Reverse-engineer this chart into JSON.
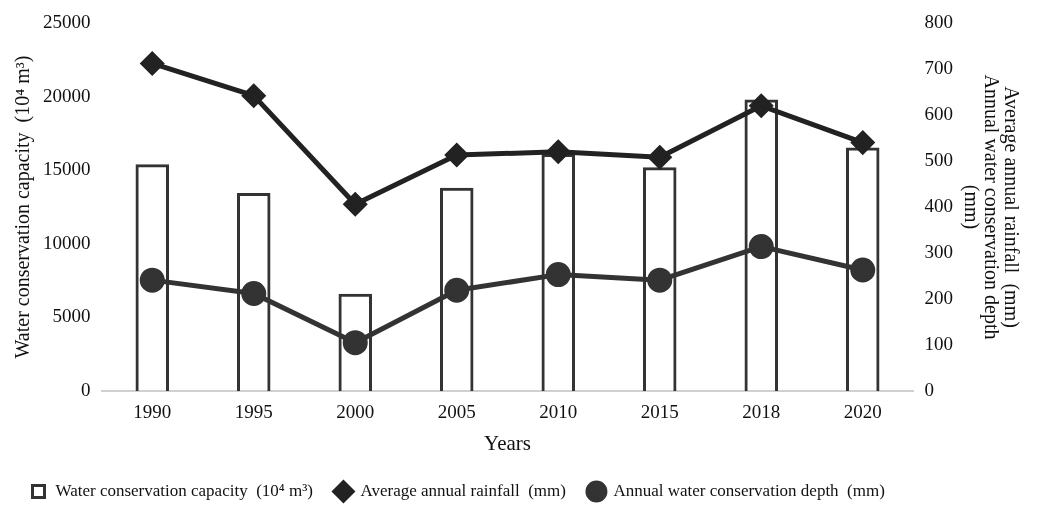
{
  "chart_data": {
    "type": "line",
    "xlabel": "Years",
    "ylabel": "Water conservation capacity  (10⁴ m³)",
    "y2label": "Average annual rainfall  (mm)\nAnnual water conservation depth\n(mm)",
    "categories": [
      "1990",
      "1995",
      "2000",
      "2005",
      "2010",
      "2015",
      "2018",
      "2020"
    ],
    "series": [
      {
        "name": "Water conservation capacity  (10⁴ m³)",
        "type": "bar",
        "color": "#333333",
        "values": [
          15400,
          13450,
          6600,
          13800,
          16100,
          15200,
          19800,
          16550
        ]
      },
      {
        "name": "Average annual rainfall  (mm)",
        "axis": "y2",
        "marker": "diamond",
        "color": "#222222",
        "values": [
          712,
          642,
          406,
          513,
          520,
          508,
          620,
          540
        ]
      },
      {
        "name": "Annual water conservation depth  (mm)",
        "axis": "y2",
        "marker": "circle",
        "color": "#333333",
        "values": [
          241,
          212,
          105,
          219,
          253,
          241,
          314,
          263
        ]
      }
    ],
    "ylim": [
      0,
      25000
    ],
    "yticks": [
      0,
      5000,
      10000,
      15000,
      20000,
      25000
    ],
    "y2lim": [
      0,
      800
    ],
    "y2ticks": [
      0,
      100,
      200,
      300,
      400,
      500,
      600,
      700,
      800
    ],
    "grid": false,
    "legend": "bottom"
  }
}
